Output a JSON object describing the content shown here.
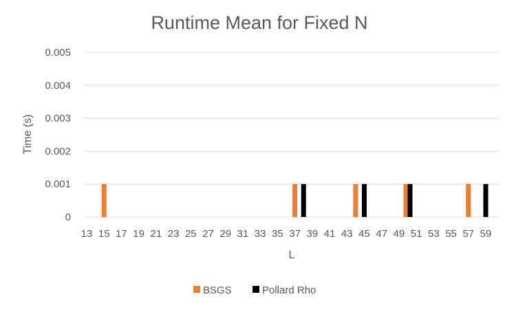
{
  "chart_data": {
    "type": "bar",
    "title": "Runtime Mean for Fixed N",
    "xlabel": "L",
    "ylabel": "Time (s)",
    "x_range": [
      13,
      59
    ],
    "x_tick_labels": [
      "13",
      "15",
      "17",
      "19",
      "21",
      "23",
      "25",
      "27",
      "29",
      "31",
      "33",
      "35",
      "37",
      "39",
      "41",
      "43",
      "45",
      "47",
      "49",
      "51",
      "53",
      "55",
      "57",
      "59"
    ],
    "ylim": [
      0,
      0.005
    ],
    "y_ticks": [
      0,
      0.001,
      0.002,
      0.003,
      0.004,
      0.005
    ],
    "y_tick_labels": [
      "0",
      "0.001",
      "0.002",
      "0.003",
      "0.004",
      "0.005"
    ],
    "grid": true,
    "legend_position": "bottom",
    "series": [
      {
        "name": "BSGS",
        "color": "#ed7d31",
        "points": [
          {
            "x": 15,
            "y": 0.001
          },
          {
            "x": 37,
            "y": 0.001
          },
          {
            "x": 44,
            "y": 0.001
          },
          {
            "x": 50,
            "y": 0.001
          },
          {
            "x": 57,
            "y": 0.001
          }
        ]
      },
      {
        "name": "Pollard Rho",
        "color": "#000000",
        "points": [
          {
            "x": 38,
            "y": 0.001
          },
          {
            "x": 45,
            "y": 0.001
          },
          {
            "x": 50,
            "y": 0.001
          },
          {
            "x": 59,
            "y": 0.001
          }
        ]
      }
    ]
  }
}
